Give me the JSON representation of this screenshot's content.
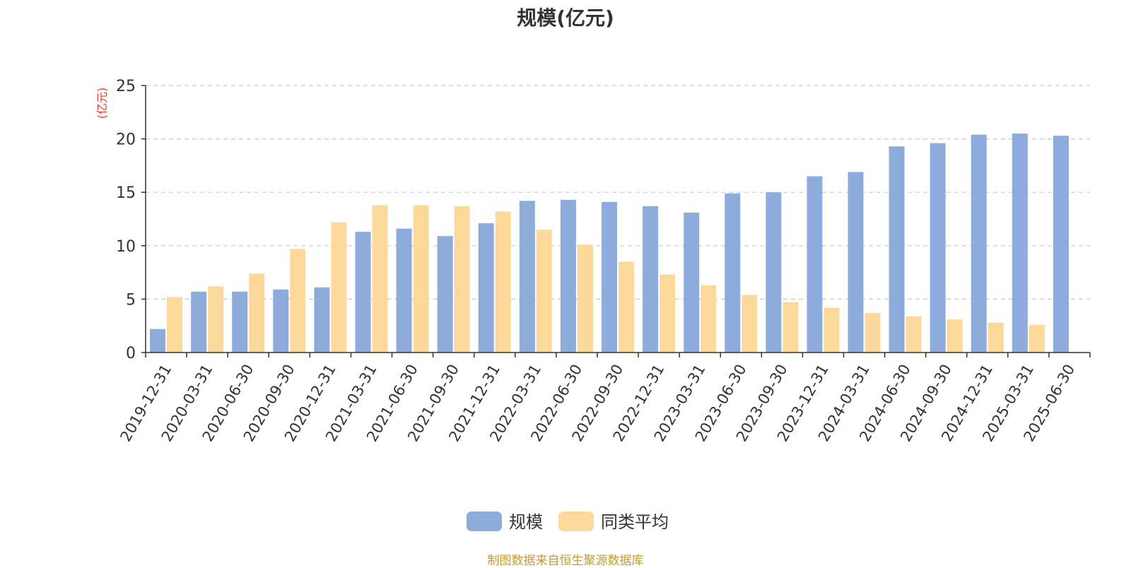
{
  "chart_data": {
    "type": "bar",
    "title": "规模(亿元)",
    "ylabel": "(亿元)",
    "xlabel": "",
    "ylim": [
      0,
      25
    ],
    "yticks": [
      0,
      5,
      10,
      15,
      20,
      25
    ],
    "grid": true,
    "legend_position": "bottom-center",
    "categories": [
      "2019-12-31",
      "2020-03-31",
      "2020-06-30",
      "2020-09-30",
      "2020-12-31",
      "2021-03-31",
      "2021-06-30",
      "2021-09-30",
      "2021-12-31",
      "2022-03-31",
      "2022-06-30",
      "2022-09-30",
      "2022-12-31",
      "2023-03-31",
      "2023-06-30",
      "2023-09-30",
      "2023-12-31",
      "2024-03-31",
      "2024-06-30",
      "2024-09-30",
      "2024-12-31",
      "2025-03-31",
      "2025-06-30"
    ],
    "series": [
      {
        "name": "规模",
        "color": "#8eacdb",
        "values": [
          2.2,
          5.7,
          5.7,
          5.9,
          6.1,
          11.3,
          11.6,
          10.9,
          12.1,
          14.2,
          14.3,
          14.1,
          13.7,
          13.1,
          14.9,
          15.0,
          16.5,
          16.9,
          19.3,
          19.6,
          20.4,
          20.5,
          20.3
        ]
      },
      {
        "name": "同类平均",
        "color": "#fcd99a",
        "values": [
          5.2,
          6.2,
          7.4,
          9.7,
          12.2,
          13.8,
          13.8,
          13.7,
          13.2,
          11.5,
          10.1,
          8.5,
          7.3,
          6.3,
          5.4,
          4.7,
          4.2,
          3.7,
          3.4,
          3.1,
          2.8,
          2.6,
          null
        ]
      }
    ]
  },
  "source_note": "制图数据来自恒生聚源数据库",
  "colors": {
    "axis": "#333333",
    "grid": "#c8c8c8",
    "ylabel": "#e8382f",
    "title": "#333333"
  }
}
